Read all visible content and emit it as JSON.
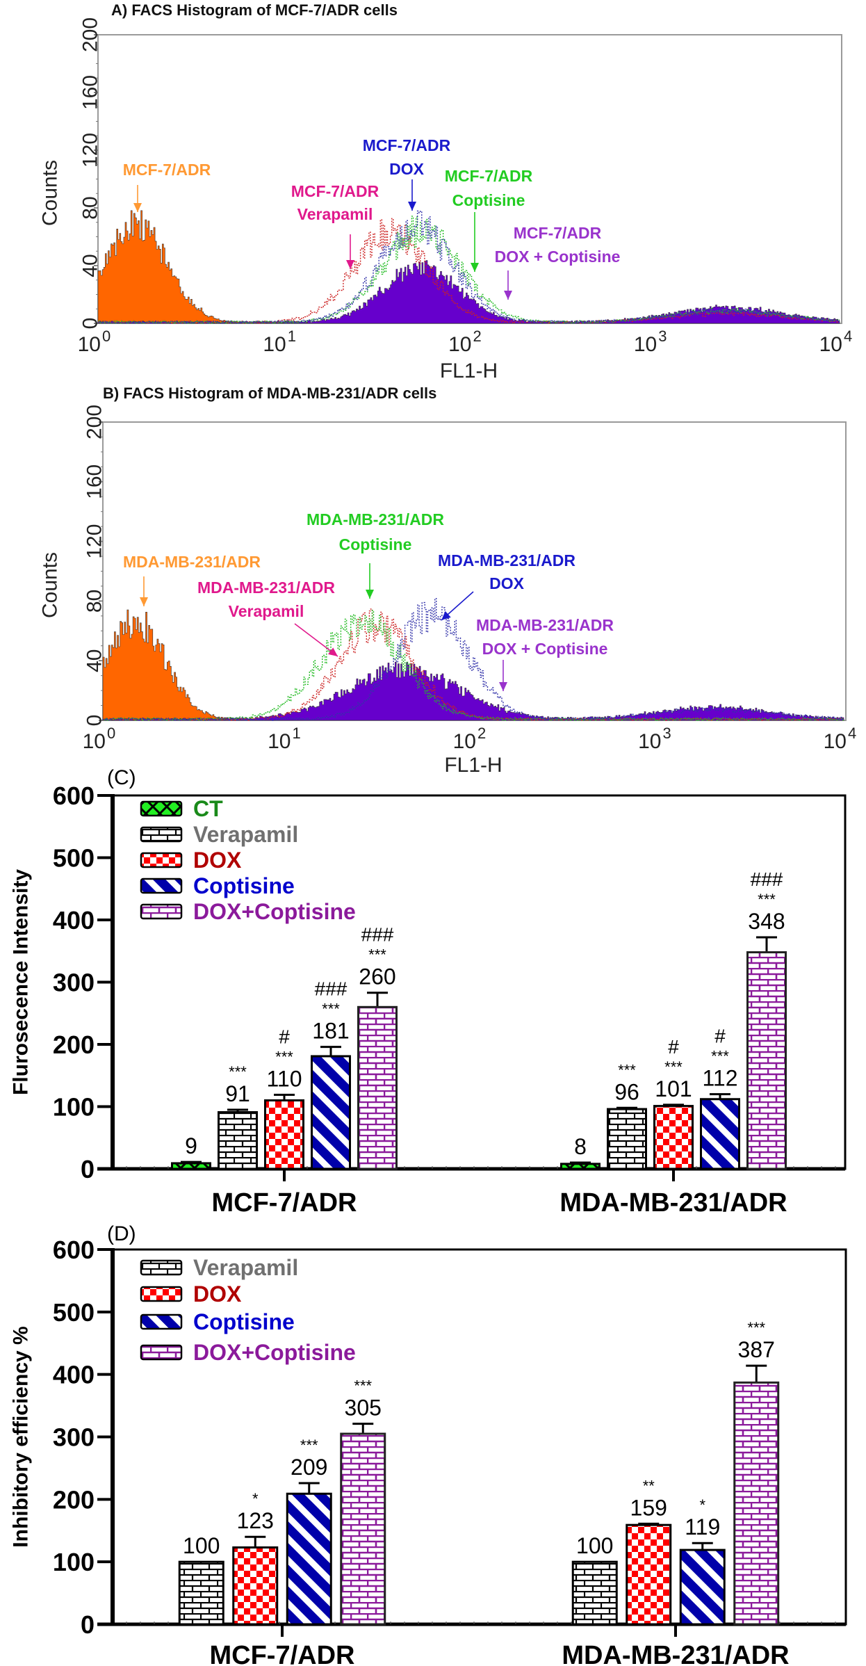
{
  "chart_data": [
    {
      "type": "histogram",
      "title": "A) FACS Histogram of MCF-7/ADR cells",
      "xlabel": "FL1-H",
      "ylabel": "Counts",
      "xscale": "log",
      "xlim": [
        1,
        10000
      ],
      "ylim": [
        0,
        200
      ],
      "yticks": [
        "0",
        "40",
        "80",
        "120",
        "160",
        "200"
      ],
      "xticks": [
        {
          "base": "10",
          "exp": "0"
        },
        {
          "base": "10",
          "exp": "1"
        },
        {
          "base": "10",
          "exp": "2"
        },
        {
          "base": "10",
          "exp": "3"
        },
        {
          "base": "10",
          "exp": "4"
        }
      ],
      "series": [
        {
          "name": "MCF-7/ADR",
          "color": "#ff6600",
          "style": "filled",
          "peaks": [
            {
              "center": 1.6,
              "count": 68,
              "spread_decades": 0.17
            }
          ]
        },
        {
          "name": "MCF-7/ADR DOX + Coptisine",
          "color": "#6600cc",
          "style": "filled",
          "peaks": [
            {
              "center": 55,
              "count": 38,
              "spread_decades": 0.2
            },
            {
              "center": 2500,
              "count": 10,
              "spread_decades": 0.3
            }
          ]
        },
        {
          "name": "MCF-7/ADR Verapamil",
          "color": "#cc2222",
          "style": "dotted",
          "peaks": [
            {
              "center": 38,
              "count": 62,
              "spread_decades": 0.2
            },
            {
              "center": 2500,
              "count": 6,
              "spread_decades": 0.3
            }
          ]
        },
        {
          "name": "MCF-7/ADR Coptisine",
          "color": "#22bb22",
          "style": "dotted",
          "peaks": [
            {
              "center": 55,
              "count": 64,
              "spread_decades": 0.21
            },
            {
              "center": 2500,
              "count": 8,
              "spread_decades": 0.3
            }
          ]
        },
        {
          "name": "MCF-7/ADR DOX",
          "color": "#3333aa",
          "style": "dotted",
          "peaks": [
            {
              "center": 52,
              "count": 66,
              "spread_decades": 0.2
            },
            {
              "center": 2500,
              "count": 8,
              "spread_decades": 0.3
            }
          ]
        }
      ],
      "annotations": [
        {
          "lines": [
            "MCF-7/ADR"
          ],
          "color": "#ff9933"
        },
        {
          "lines": [
            "MCF-7/ADR",
            "Verapamil"
          ],
          "color": "#e0198c"
        },
        {
          "lines": [
            "MCF-7/ADR",
            "DOX"
          ],
          "color": "#1a1acc"
        },
        {
          "lines": [
            "MCF-7/ADR",
            "Coptisine"
          ],
          "color": "#22cc22"
        },
        {
          "lines": [
            "MCF-7/ADR",
            "DOX + Coptisine"
          ],
          "color": "#9933cc"
        }
      ]
    },
    {
      "type": "histogram",
      "title": "B) FACS Histogram of MDA-MB-231/ADR cells",
      "xlabel": "FL1-H",
      "ylabel": "Counts",
      "xscale": "log",
      "xlim": [
        1,
        10000
      ],
      "ylim": [
        0,
        200
      ],
      "yticks": [
        "0",
        "40",
        "80",
        "120",
        "160",
        "200"
      ],
      "xticks": [
        {
          "base": "10",
          "exp": "0"
        },
        {
          "base": "10",
          "exp": "1"
        },
        {
          "base": "10",
          "exp": "2"
        },
        {
          "base": "10",
          "exp": "3"
        },
        {
          "base": "10",
          "exp": "4"
        }
      ],
      "series": [
        {
          "name": "MDA-MB-231/ADR",
          "color": "#ff6600",
          "style": "filled",
          "peaks": [
            {
              "center": 1.5,
              "count": 66,
              "spread_decades": 0.16
            }
          ]
        },
        {
          "name": "MDA-MB-231/ADR DOX + Coptisine",
          "color": "#6600cc",
          "style": "filled",
          "peaks": [
            {
              "center": 42,
              "count": 33,
              "spread_decades": 0.3
            },
            {
              "center": 2000,
              "count": 8,
              "spread_decades": 0.3
            }
          ]
        },
        {
          "name": "MDA-MB-231/ADR Verapamil",
          "color": "#cc2222",
          "style": "dotted",
          "peaks": [
            {
              "center": 30,
              "count": 64,
              "spread_decades": 0.2
            }
          ]
        },
        {
          "name": "MDA-MB-231/ADR Coptisine",
          "color": "#22bb22",
          "style": "dotted",
          "peaks": [
            {
              "center": 25,
              "count": 66,
              "spread_decades": 0.22
            }
          ]
        },
        {
          "name": "MDA-MB-231/ADR DOX",
          "color": "#3333aa",
          "style": "dotted",
          "peaks": [
            {
              "center": 60,
              "count": 70,
              "spread_decades": 0.2
            },
            {
              "center": 2000,
              "count": 7,
              "spread_decades": 0.3
            }
          ]
        }
      ],
      "annotations": [
        {
          "lines": [
            "MDA-MB-231/ADR"
          ],
          "color": "#ff9933"
        },
        {
          "lines": [
            "MDA-MB-231/ADR",
            "Verapamil"
          ],
          "color": "#e0198c"
        },
        {
          "lines": [
            "MDA-MB-231/ADR",
            "Coptisine"
          ],
          "color": "#22cc22"
        },
        {
          "lines": [
            "MDA-MB-231/ADR",
            "DOX"
          ],
          "color": "#1a1acc"
        },
        {
          "lines": [
            "MDA-MB-231/ADR",
            "DOX + Coptisine"
          ],
          "color": "#9933cc"
        }
      ]
    },
    {
      "type": "bar",
      "panel_label": "(C)",
      "ylabel": "Flurosecence Intensity",
      "ylim": [
        0,
        600
      ],
      "yticks": [
        "0",
        "100",
        "200",
        "300",
        "400",
        "500",
        "600"
      ],
      "categories": [
        "MCF-7/ADR",
        "MDA-MB-231/ADR"
      ],
      "legend": "top-left",
      "series": [
        {
          "name": "CT",
          "color": "#1a8a1a",
          "pattern": "ct",
          "values": [
            9,
            8
          ],
          "errors": [
            11,
            10
          ],
          "stars": [
            "",
            ""
          ],
          "hashes": [
            "",
            ""
          ]
        },
        {
          "name": "Verapamil",
          "color": "#707070",
          "pattern": "brick-black",
          "values": [
            91,
            96
          ],
          "errors": [
            95,
            98
          ],
          "stars": [
            "***",
            "***"
          ],
          "hashes": [
            "",
            ""
          ]
        },
        {
          "name": "DOX",
          "color": "#b00000",
          "pattern": "checker",
          "values": [
            110,
            101
          ],
          "errors": [
            119,
            103
          ],
          "stars": [
            "***",
            "***"
          ],
          "hashes": [
            "#",
            "#"
          ]
        },
        {
          "name": "Coptisine",
          "color": "#0000cc",
          "pattern": "stripes",
          "values": [
            181,
            112
          ],
          "errors": [
            196,
            120
          ],
          "stars": [
            "***",
            "***"
          ],
          "hashes": [
            "###",
            "#"
          ]
        },
        {
          "name": "DOX+Coptisine",
          "color": "#8b1a9b",
          "pattern": "brick-purple",
          "values": [
            260,
            348
          ],
          "errors": [
            283,
            372
          ],
          "stars": [
            "***",
            "***"
          ],
          "hashes": [
            "###",
            "###"
          ]
        }
      ]
    },
    {
      "type": "bar",
      "panel_label": "(D)",
      "ylabel": "Inhibitory efficiency %",
      "ylim": [
        0,
        600
      ],
      "yticks": [
        "0",
        "100",
        "200",
        "300",
        "400",
        "500",
        "600"
      ],
      "categories": [
        "MCF-7/ADR",
        "MDA-MB-231/ADR"
      ],
      "legend": "top-left",
      "series": [
        {
          "name": "Verapamil",
          "color": "#707070",
          "pattern": "brick-black",
          "values": [
            100,
            100
          ],
          "errors": [
            100,
            100
          ],
          "stars": [
            "",
            ""
          ],
          "hashes": [
            "",
            ""
          ]
        },
        {
          "name": "DOX",
          "color": "#b00000",
          "pattern": "checker",
          "values": [
            123,
            159
          ],
          "errors": [
            140,
            161
          ],
          "stars": [
            "*",
            "**"
          ],
          "hashes": [
            "",
            ""
          ]
        },
        {
          "name": "Coptisine",
          "color": "#0000cc",
          "pattern": "stripes",
          "values": [
            209,
            119
          ],
          "errors": [
            226,
            130
          ],
          "stars": [
            "***",
            "*"
          ],
          "hashes": [
            "",
            ""
          ]
        },
        {
          "name": "DOX+Coptisine",
          "color": "#8b1a9b",
          "pattern": "brick-purple",
          "values": [
            305,
            387
          ],
          "errors": [
            321,
            414
          ],
          "stars": [
            "***",
            "***"
          ],
          "hashes": [
            "",
            ""
          ]
        }
      ]
    }
  ]
}
